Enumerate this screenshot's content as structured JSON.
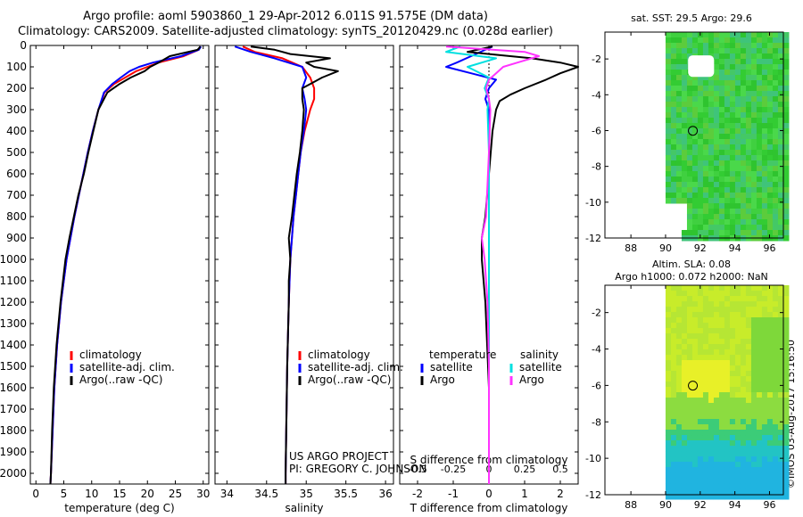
{
  "title_line1": "Argo profile: aoml 5903860_1 29-Apr-2012 6.011S 91.575E (DM data)",
  "title_line2": "Climatology: CARS2009. Satellite-adjusted climatology: synTS_20120429.nc (0.028d earlier)",
  "colors": {
    "climatology": "#ff0000",
    "satellite": "#0000ff",
    "argo": "#000000",
    "salinity_satellite": "#00e0e0",
    "salinity_argo": "#ff33ff"
  },
  "chart_data": [
    {
      "type": "line",
      "y_reversed": true,
      "ylim": [
        0,
        2050
      ],
      "xlim": [
        -1,
        31
      ],
      "xlabel": "temperature (deg C)",
      "xticks": [
        0,
        5,
        10,
        15,
        20,
        25,
        30
      ],
      "yticks": [
        0,
        100,
        200,
        300,
        400,
        500,
        600,
        700,
        800,
        900,
        1000,
        1100,
        1200,
        1300,
        1400,
        1500,
        1600,
        1700,
        1800,
        1900,
        2000
      ],
      "legend": [
        "climatology",
        "satellite-adj. clim.",
        "Argo(..raw -QC)"
      ],
      "series": [
        {
          "name": "climatology",
          "color": "#ff0000",
          "depth": [
            5,
            20,
            50,
            80,
            100,
            120,
            150,
            180,
            220,
            300,
            400,
            500,
            600,
            700,
            800,
            900,
            1000,
            1200,
            1400,
            1600,
            1800,
            2000,
            2050
          ],
          "values": [
            29.5,
            29.2,
            26.5,
            22.0,
            20.0,
            18.0,
            16.0,
            14.0,
            12.3,
            11.2,
            10.2,
            9.3,
            8.5,
            7.7,
            6.9,
            6.2,
            5.5,
            4.5,
            3.8,
            3.3,
            3.0,
            2.7,
            2.6
          ]
        },
        {
          "name": "satellite-adj. clim.",
          "color": "#0000ff",
          "depth": [
            5,
            20,
            50,
            80,
            100,
            120,
            150,
            180,
            220,
            300,
            400,
            500,
            600,
            700,
            800,
            900,
            1000,
            1200,
            1400,
            1600,
            1800,
            2000,
            2050
          ],
          "values": [
            29.6,
            29.2,
            26.0,
            21.0,
            18.5,
            16.8,
            15.2,
            13.7,
            12.2,
            11.2,
            10.2,
            9.3,
            8.5,
            7.7,
            6.9,
            6.2,
            5.5,
            4.5,
            3.8,
            3.3,
            3.0,
            2.7,
            2.6
          ]
        },
        {
          "name": "Argo(..raw -QC)",
          "color": "#000000",
          "depth": [
            5,
            20,
            50,
            80,
            100,
            120,
            150,
            180,
            220,
            300,
            400,
            500,
            600,
            700,
            800,
            900,
            1000,
            1200,
            1400,
            1600,
            1800,
            2000,
            2050
          ],
          "values": [
            29.5,
            29.0,
            24.0,
            22.0,
            20.5,
            19.5,
            17.0,
            15.0,
            12.8,
            11.2,
            10.3,
            9.4,
            8.6,
            7.6,
            6.8,
            6.0,
            5.3,
            4.4,
            3.7,
            3.2,
            2.9,
            2.7,
            2.6
          ]
        }
      ]
    },
    {
      "type": "line",
      "y_reversed": true,
      "ylim": [
        0,
        2050
      ],
      "xlim": [
        33.85,
        36.1
      ],
      "xlabel": "salinity",
      "xticks": [
        34,
        34.5,
        35,
        35.5,
        36
      ],
      "legend": [
        "climatology",
        "satellite-adj. clim.",
        "Argo(..raw -QC)"
      ],
      "annotation": [
        "US ARGO PROJECT",
        "PI: GREGORY C. JOHNSON"
      ],
      "series": [
        {
          "name": "climatology",
          "color": "#ff0000",
          "depth": [
            5,
            30,
            60,
            100,
            150,
            200,
            250,
            300,
            400,
            500,
            600,
            700,
            800,
            1000,
            1200,
            1500,
            2000,
            2050
          ],
          "values": [
            34.2,
            34.35,
            34.7,
            34.95,
            35.05,
            35.1,
            35.1,
            35.05,
            34.98,
            34.93,
            34.9,
            34.87,
            34.84,
            34.8,
            34.78,
            34.76,
            34.74,
            34.74
          ]
        },
        {
          "name": "satellite-adj. clim.",
          "color": "#0000ff",
          "depth": [
            5,
            30,
            60,
            100,
            150,
            200,
            250,
            300,
            400,
            500,
            600,
            700,
            800,
            1000,
            1200,
            1500,
            2000,
            2050
          ],
          "values": [
            34.1,
            34.3,
            34.6,
            34.95,
            35.0,
            34.95,
            34.98,
            35.0,
            34.97,
            34.93,
            34.9,
            34.87,
            34.84,
            34.8,
            34.78,
            34.76,
            34.74,
            34.74
          ]
        },
        {
          "name": "Argo(..raw -QC)",
          "color": "#000000",
          "depth": [
            5,
            20,
            40,
            60,
            80,
            100,
            120,
            150,
            180,
            200,
            250,
            300,
            400,
            500,
            600,
            700,
            800,
            900,
            1000,
            1100,
            1200,
            1500,
            2000,
            2050
          ],
          "values": [
            34.3,
            34.6,
            34.8,
            35.3,
            35.0,
            35.1,
            35.4,
            35.2,
            35.05,
            34.95,
            34.95,
            34.97,
            34.95,
            34.92,
            34.88,
            34.85,
            34.82,
            34.78,
            34.8,
            34.78,
            34.78,
            34.76,
            34.74,
            34.74
          ]
        }
      ]
    },
    {
      "type": "line",
      "y_reversed": true,
      "ylim": [
        0,
        2050
      ],
      "xlim": [
        -2.5,
        2.5
      ],
      "xlabel": "T difference from climatology",
      "xticks": [
        -2,
        -1,
        0,
        1,
        2
      ],
      "xlabel_top": "S difference from climatology",
      "xticks_top": [
        -0.5,
        -0.25,
        0,
        0.25,
        0.5
      ],
      "legend": [
        "temperature",
        "satellite",
        "Argo",
        "salinity",
        "satellite",
        "Argo"
      ],
      "series": [
        {
          "name": "satellite",
          "color": "#0000ff",
          "depth": [
            5,
            50,
            80,
            100,
            130,
            160,
            200,
            250,
            300,
            500,
            800,
            1000,
            1300,
            1800,
            2050
          ],
          "values": [
            0.1,
            -0.5,
            -0.9,
            -1.2,
            -0.5,
            0.2,
            0.0,
            -0.1,
            0.0,
            0.0,
            0.0,
            0.0,
            0.0,
            0.0,
            0.0
          ]
        },
        {
          "name": "Argo",
          "color": "#000000",
          "depth": [
            5,
            30,
            60,
            80,
            100,
            130,
            160,
            200,
            230,
            260,
            300,
            400,
            600,
            800,
            900,
            1000,
            1200,
            1400,
            1600,
            1800,
            2000,
            2050
          ],
          "values": [
            0.1,
            -0.6,
            1.2,
            2.0,
            2.5,
            2.0,
            1.6,
            1.0,
            0.6,
            0.3,
            0.2,
            0.1,
            0.0,
            -0.1,
            -0.2,
            -0.2,
            -0.1,
            -0.05,
            0.0,
            0.0,
            0.0,
            0.0
          ]
        },
        {
          "name": "satellite",
          "color": "#00e0e0",
          "depth": [
            5,
            30,
            60,
            100,
            150,
            200,
            250,
            300,
            500,
            1000,
            1500,
            2050
          ],
          "values": [
            -0.2,
            -0.3,
            0.05,
            -0.15,
            0.0,
            -0.03,
            0.0,
            -0.01,
            0.0,
            0.0,
            0.0,
            0.0
          ]
        },
        {
          "name": "Argo",
          "color": "#ff33ff",
          "depth": [
            5,
            30,
            50,
            80,
            100,
            130,
            160,
            200,
            250,
            300,
            500,
            800,
            900,
            1000,
            1200,
            1500,
            2050
          ],
          "values": [
            -0.3,
            0.25,
            0.35,
            0.2,
            0.1,
            0.05,
            0.0,
            -0.02,
            0.0,
            0.01,
            0.0,
            -0.02,
            -0.05,
            -0.03,
            -0.01,
            0.0,
            0.0
          ]
        }
      ]
    },
    {
      "type": "heatmap",
      "title": "sat. SST: 29.5 Argo: 29.6",
      "xlim": [
        86.5,
        96.8
      ],
      "ylim": [
        -12,
        -0.5
      ],
      "xticks": [
        88,
        90,
        92,
        94,
        96
      ],
      "yticks": [
        -2,
        -4,
        -6,
        -8,
        -10,
        -12
      ],
      "marker": {
        "lon": 91.575,
        "lat": -6.011
      },
      "data_extent_lon": [
        90,
        96.8
      ],
      "missing_patch": {
        "lon": [
          91.3,
          92.8
        ],
        "lat": [
          -1.8,
          -3.0
        ]
      }
    },
    {
      "type": "heatmap",
      "title": [
        "Altim. SLA: 0.08",
        "Argo h1000: 0.072 h2000: NaN"
      ],
      "xlim": [
        86.5,
        96.8
      ],
      "ylim": [
        -12,
        -0.5
      ],
      "xticks": [
        88,
        90,
        92,
        94,
        96
      ],
      "yticks": [
        -2,
        -4,
        -6,
        -8,
        -10,
        -12
      ],
      "marker": {
        "lon": 91.575,
        "lat": -6.011
      },
      "data_extent_lon": [
        90,
        96.8
      ]
    }
  ],
  "credit": "©IMOS 03-Aug-2017 15:16:50"
}
